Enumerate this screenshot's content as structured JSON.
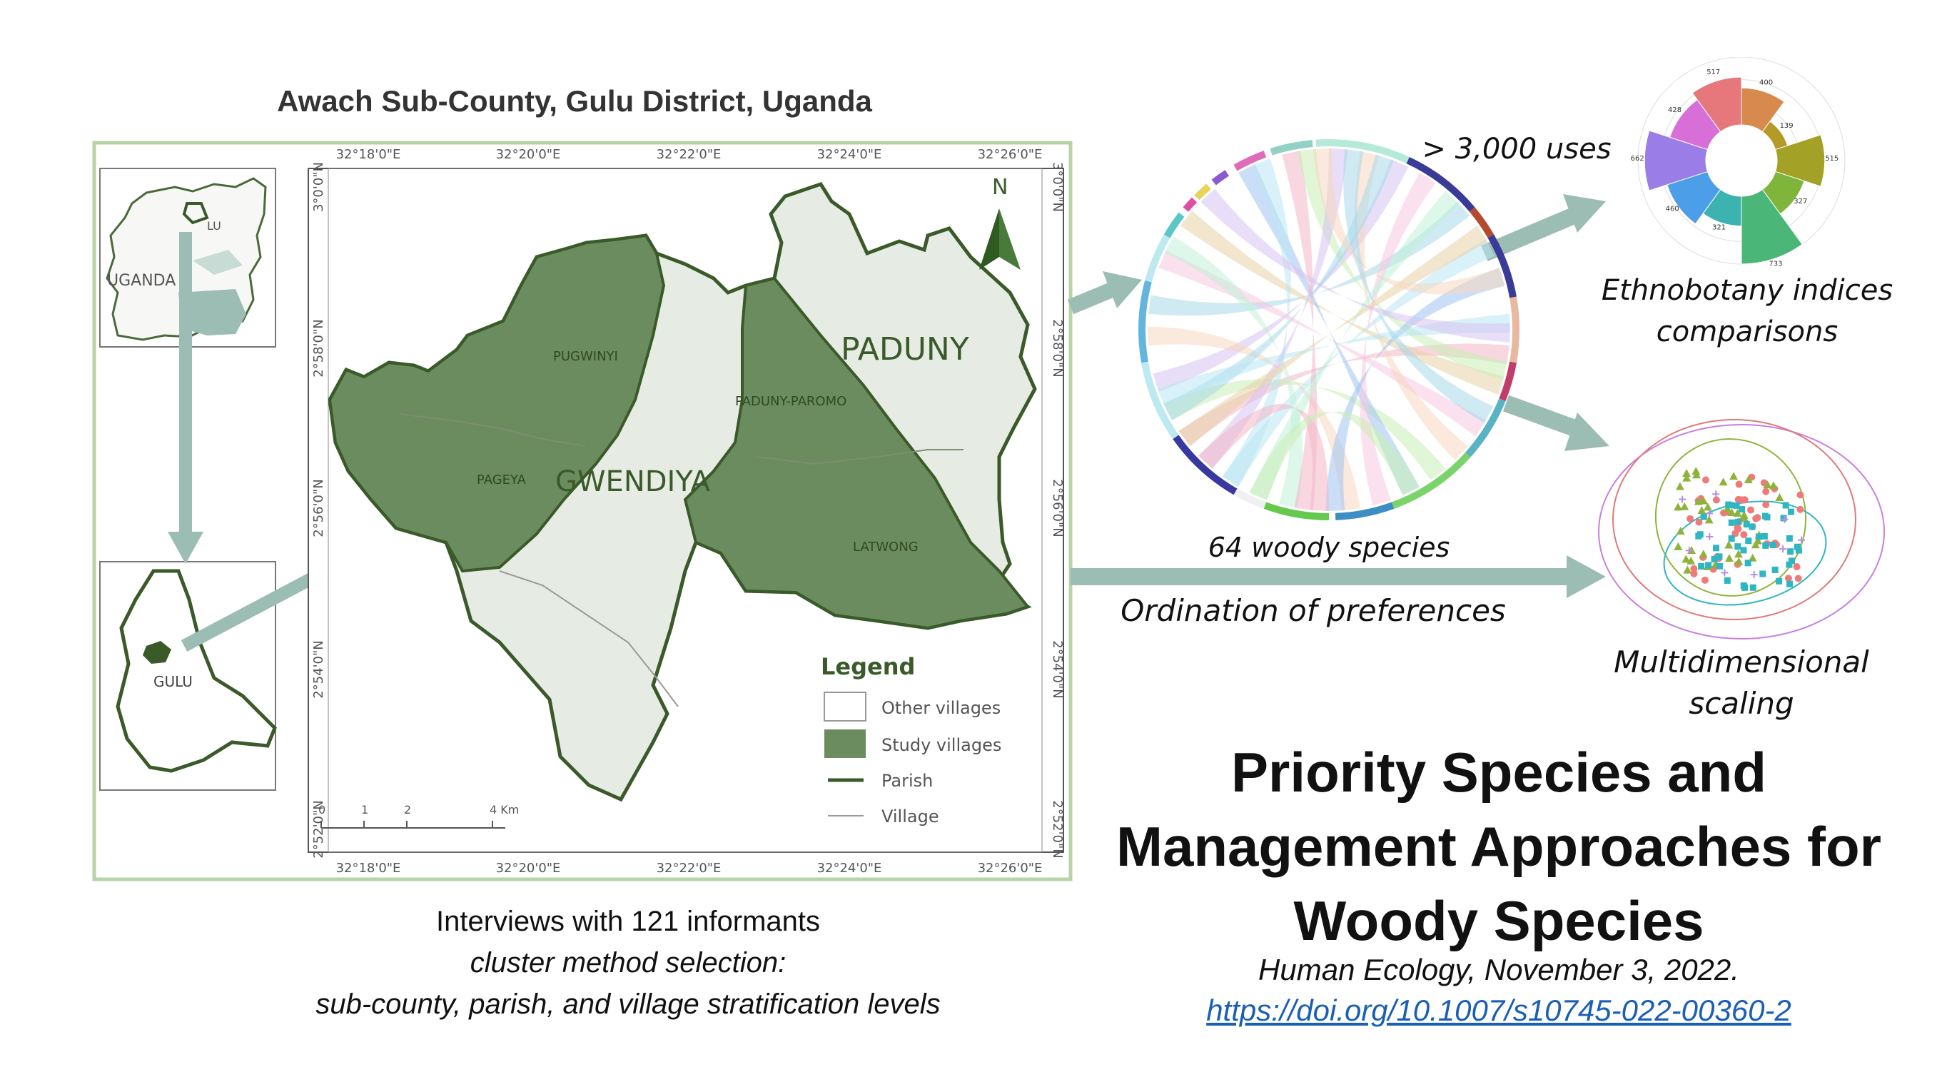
{
  "map": {
    "title": "Awach Sub-County, Gulu District, Uganda",
    "top_ticks": [
      "32°18'0\"E",
      "32°20'0\"E",
      "32°22'0\"E",
      "32°24'0\"E",
      "32°26'0\"E"
    ],
    "bottom_ticks": [
      "32°18'0\"E",
      "32°20'0\"E",
      "32°22'0\"E",
      "32°24'0\"E",
      "32°26'0\"E"
    ],
    "left_ticks": [
      "3°0'0\"N",
      "2°58'0\"N",
      "2°56'0\"N",
      "2°54'0\"N",
      "2°52'0\"N"
    ],
    "right_ticks": [
      "3°0'0\"N",
      "2°58'0\"N",
      "2°56'0\"N",
      "2°54'0\"N",
      "2°52'0\"N"
    ],
    "north": "N",
    "inset_country": "UGANDA",
    "inset_gulu_small": "LU",
    "inset_district": "GULU",
    "parish_labels": [
      "GWENDIYA",
      "PADUNY"
    ],
    "village_labels": [
      "PUGWINYI",
      "PAGEYA",
      "PADUNY-PAROMO",
      "LATWONG"
    ],
    "legend": {
      "title": "Legend",
      "items": [
        "Other villages",
        "Study villages",
        "Parish",
        "Village"
      ]
    },
    "scale_labels": [
      "0",
      "1",
      "2",
      "4 Km"
    ],
    "colors": {
      "study": "#6b8c5e",
      "other": "#e6ece3",
      "boundary": "#3a5a2a",
      "arrow": "#9cbdb4"
    }
  },
  "caption": {
    "line1": "Interviews with 121 informants",
    "line2": "cluster method selection:",
    "line3": "sub-county, parish, and village stratification levels"
  },
  "chord": {
    "label": "64 woody species"
  },
  "ordination_label": "Ordination of preferences",
  "uses_label": "> 3,000 uses",
  "polar": {
    "values": [
      517,
      400,
      139,
      515,
      327,
      733,
      321,
      460,
      662,
      428
    ],
    "label1": "Ethnobotany indices",
    "label2": "comparisons"
  },
  "mds": {
    "label1": "Multidimensional",
    "label2": "scaling"
  },
  "paper": {
    "title_line1": "Priority Species and",
    "title_line2": "Management Approaches for",
    "title_line3": "Woody Species",
    "journal": "Human Ecology, November 3, 2022.",
    "doi": "https://doi.org/10.1007/s10745-022-00360-2"
  }
}
